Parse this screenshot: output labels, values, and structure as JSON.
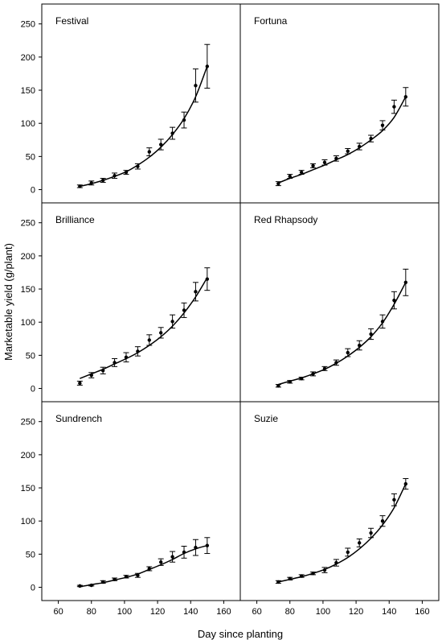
{
  "figure": {
    "ylabel": "Marketable yield (g/plant)",
    "xlabel": "Day since planting",
    "xticks": [
      60,
      80,
      100,
      120,
      140,
      160
    ],
    "yticks": [
      0,
      50,
      100,
      150,
      200,
      250
    ]
  },
  "chart_data": [
    {
      "type": "scatter",
      "title": "Festival",
      "xlim": [
        50,
        170
      ],
      "ylim": [
        -20,
        280
      ],
      "x": [
        73,
        80,
        87,
        94,
        101,
        108,
        115,
        122,
        129,
        136,
        143,
        150
      ],
      "y": [
        5,
        10,
        14,
        21,
        26,
        35,
        57,
        68,
        85,
        105,
        157,
        186
      ],
      "err": [
        2,
        3,
        3,
        4,
        3,
        4,
        6,
        8,
        9,
        12,
        25,
        33
      ],
      "fit": [
        5,
        9,
        14,
        20,
        27,
        37,
        49,
        64,
        83,
        107,
        140,
        186
      ]
    },
    {
      "type": "scatter",
      "title": "Fortuna",
      "xlim": [
        50,
        170
      ],
      "ylim": [
        -20,
        280
      ],
      "x": [
        73,
        80,
        87,
        94,
        101,
        108,
        115,
        122,
        129,
        136,
        143,
        150
      ],
      "y": [
        9,
        20,
        26,
        36,
        41,
        47,
        58,
        65,
        77,
        97,
        125,
        140
      ],
      "err": [
        3,
        3,
        3,
        3,
        4,
        4,
        4,
        5,
        5,
        7,
        10,
        14
      ],
      "fit": [
        10,
        17,
        23,
        30,
        37,
        45,
        53,
        63,
        75,
        89,
        109,
        140
      ]
    },
    {
      "type": "scatter",
      "title": "Brilliance",
      "xlim": [
        50,
        170
      ],
      "ylim": [
        -20,
        280
      ],
      "x": [
        73,
        80,
        87,
        94,
        101,
        108,
        115,
        122,
        129,
        136,
        143,
        150
      ],
      "y": [
        8,
        20,
        27,
        39,
        47,
        56,
        73,
        84,
        101,
        118,
        146,
        165
      ],
      "err": [
        3,
        4,
        5,
        6,
        7,
        7,
        8,
        8,
        10,
        11,
        14,
        17
      ],
      "fit": [
        15,
        22,
        29,
        37,
        45,
        54,
        65,
        78,
        94,
        114,
        138,
        167
      ]
    },
    {
      "type": "scatter",
      "title": "Red Rhapsody",
      "xlim": [
        50,
        170
      ],
      "ylim": [
        -20,
        280
      ],
      "x": [
        73,
        80,
        87,
        94,
        101,
        108,
        115,
        122,
        129,
        136,
        143,
        150
      ],
      "y": [
        4,
        10,
        15,
        22,
        30,
        39,
        54,
        65,
        82,
        101,
        133,
        160
      ],
      "err": [
        2,
        2,
        2,
        3,
        3,
        4,
        6,
        7,
        8,
        10,
        13,
        20
      ],
      "fit": [
        6,
        11,
        16,
        22,
        29,
        38,
        49,
        62,
        78,
        99,
        127,
        160
      ]
    },
    {
      "type": "scatter",
      "title": "Sundrench",
      "xlim": [
        50,
        170
      ],
      "ylim": [
        -20,
        280
      ],
      "x": [
        73,
        80,
        87,
        94,
        101,
        108,
        115,
        122,
        129,
        136,
        143,
        150
      ],
      "y": [
        2,
        3,
        8,
        12,
        16,
        18,
        28,
        38,
        46,
        53,
        60,
        63
      ],
      "err": [
        1,
        1,
        2,
        2,
        2,
        3,
        3,
        5,
        8,
        9,
        12,
        12
      ],
      "fit": [
        1,
        4,
        7,
        11,
        15,
        20,
        27,
        34,
        42,
        51,
        58,
        63
      ]
    },
    {
      "type": "scatter",
      "title": "Suzie",
      "xlim": [
        50,
        170
      ],
      "ylim": [
        -20,
        280
      ],
      "x": [
        73,
        80,
        87,
        94,
        101,
        108,
        115,
        122,
        129,
        136,
        143,
        150
      ],
      "y": [
        8,
        13,
        17,
        21,
        26,
        37,
        53,
        67,
        82,
        100,
        132,
        156
      ],
      "err": [
        2,
        2,
        2,
        2,
        4,
        5,
        6,
        6,
        7,
        8,
        9,
        8
      ],
      "fit": [
        8,
        12,
        16,
        21,
        27,
        35,
        45,
        58,
        74,
        94,
        120,
        156
      ]
    }
  ]
}
